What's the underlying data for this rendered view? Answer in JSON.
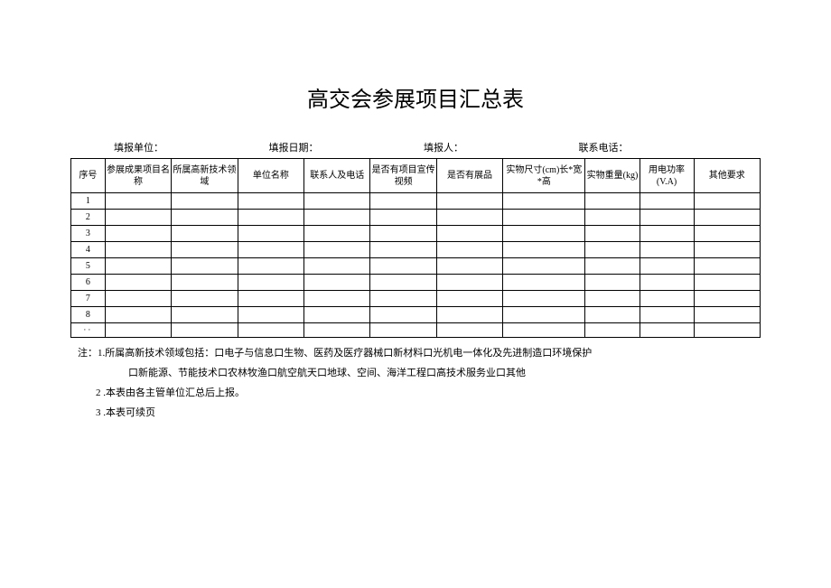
{
  "title": "高交会参展项目汇总表",
  "info": {
    "unit_label": "填报单位：",
    "date_label": "填报日期：",
    "person_label": "填报人：",
    "phone_label": "联系电话："
  },
  "table": {
    "columns": [
      "序号",
      "参展成果项目名称",
      "所属高新技术领域",
      "单位名称",
      "联系人及电话",
      "是否有项目宣传视频",
      "是否有展品",
      "实物尺寸(cm)长*宽*高",
      "实物重量(kg)",
      "用电功率(V.A)",
      "其他要求"
    ],
    "rows": [
      {
        "idx": "1"
      },
      {
        "idx": "2"
      },
      {
        "idx": "3"
      },
      {
        "idx": "4"
      },
      {
        "idx": "5"
      },
      {
        "idx": "6"
      },
      {
        "idx": "7"
      },
      {
        "idx": "8"
      }
    ],
    "dots": "··"
  },
  "notes": {
    "n1a": "注：1.所属高新技术领域包括：口电子与信息口生物、医药及医疗器械口新材料口光机电一体化及先进制造口环境保护",
    "n1b": "口新能源、节能技术口农林牧渔口航空航天口地球、空间、海洋工程口高技术服务业口其他",
    "n2": "2 .本表由各主管单位汇总后上报。",
    "n3": "3 .本表可续页"
  }
}
